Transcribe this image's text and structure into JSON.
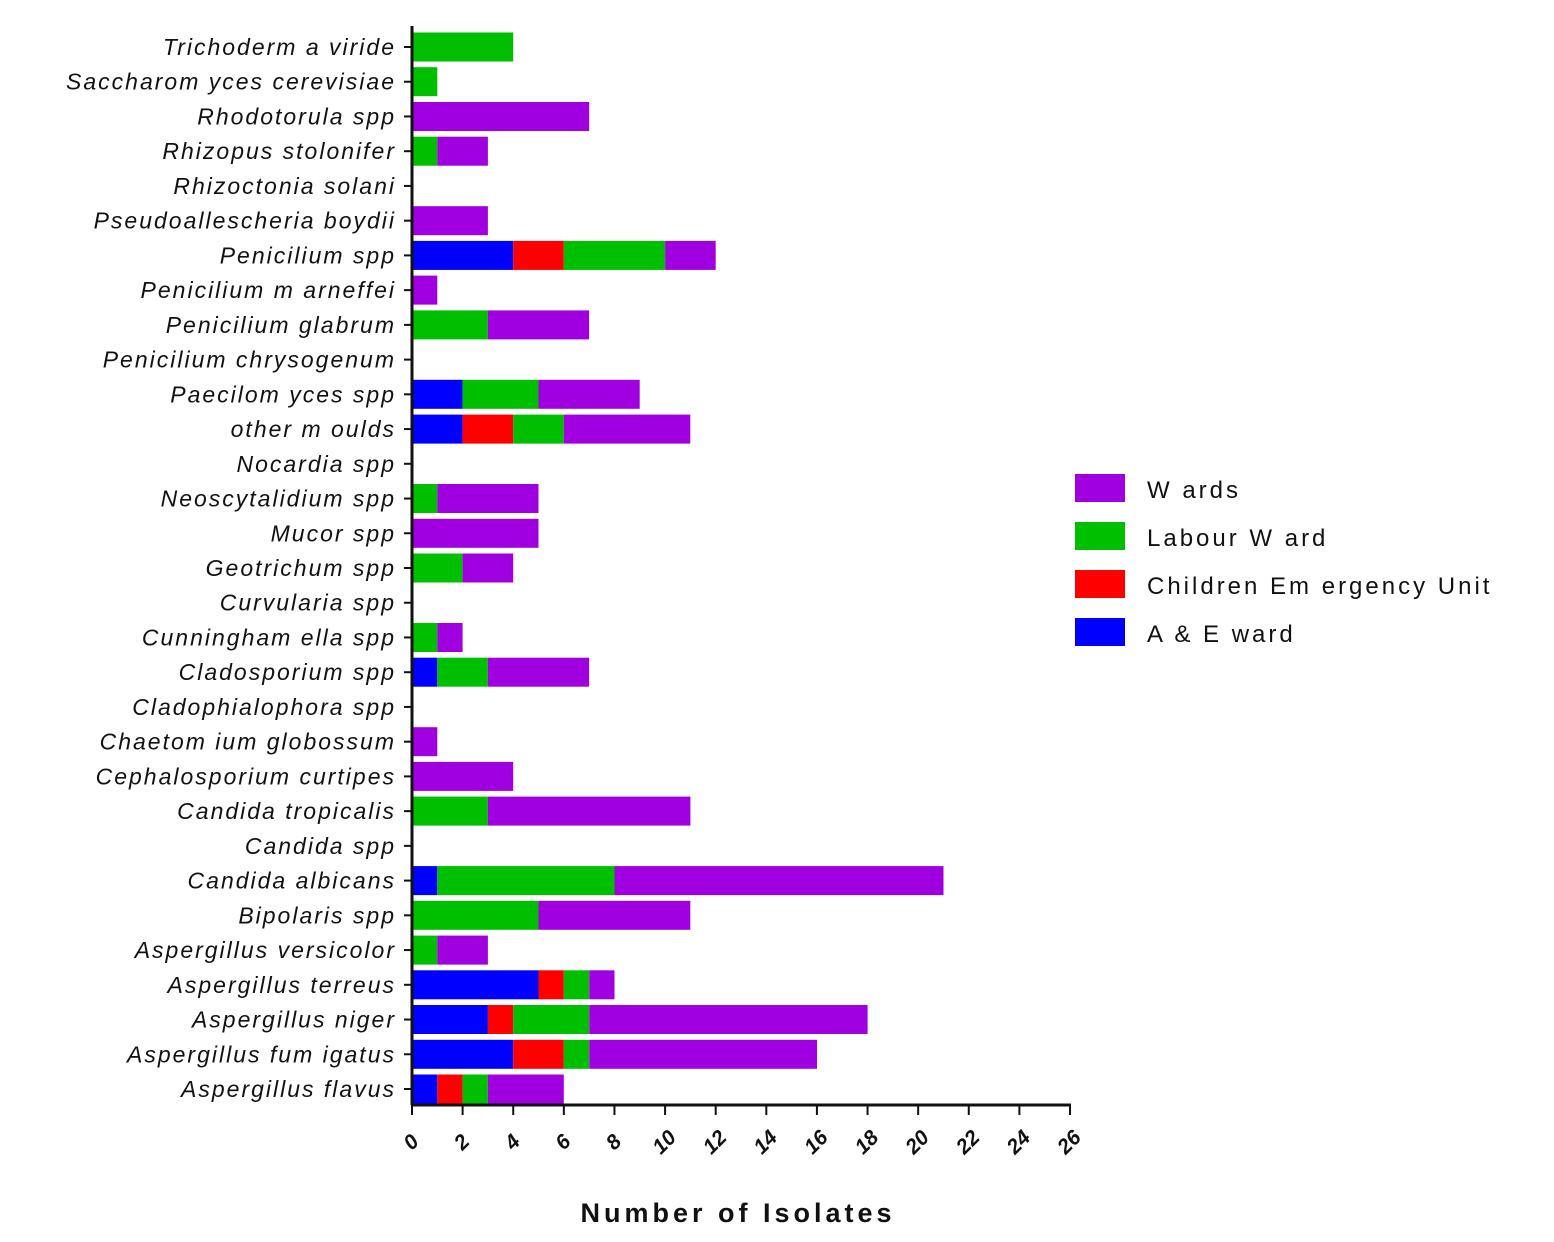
{
  "chart_data": {
    "type": "bar",
    "orientation": "horizontal",
    "stacked": true,
    "title": "",
    "xlabel": "Number of Isolates",
    "ylabel": "",
    "xlim": [
      0,
      26
    ],
    "x_ticks": [
      "0",
      "2",
      "4",
      "6",
      "8",
      "10",
      "12",
      "14",
      "16",
      "18",
      "20",
      "22",
      "24",
      "26"
    ],
    "grid": false,
    "legend_position": "right",
    "categories": [
      "Trichoderma viride",
      "Saccharomyces cerevisiae",
      "Rhodotorula spp",
      "Rhizopus stolonifer",
      "Rhizoctonia solani",
      "Pseudoallescheria boydii",
      "Penicilium spp",
      "Penicilium marneffei",
      "Penicilium glabrum",
      "Penicilium chrysogenum",
      "Paecilomyces spp",
      "other moulds",
      "Nocardia spp",
      "Neoscytalidium spp",
      "Mucor spp",
      "Geotrichum spp",
      "Curvularia spp",
      "Cunninghamella spp",
      "Cladosporium spp",
      "Cladophialophora spp",
      "Chaetomium globossum",
      "Cephalosporium curtipes",
      "Candida tropicalis",
      "Candida spp",
      "Candida albicans",
      "Bipolaris spp",
      "Aspergillus versicolor",
      "Aspergillus terreus",
      "Aspergillus niger",
      "Aspergillus fumigatus",
      "Aspergillus flavus"
    ],
    "category_labels": [
      "Trichoderm a  viride",
      "Saccharom yces  cerevisiae",
      "Rhodotorula  spp",
      "Rhizopus  stolonifer",
      "Rhizoctonia  solani",
      "Pseudoallescheria  boydii",
      "Penicilium  spp",
      "Penicilium  m arneffei",
      "Penicilium  glabrum",
      "Penicilium  chrysogenum",
      "Paecilom yces  spp",
      "other m oulds",
      "Nocardia  spp",
      "Neoscytalidium  spp",
      "Mucor spp",
      "Geotrichum  spp",
      "Curvularia  spp",
      "Cunningham ella  spp",
      "Cladosporium  spp",
      "Cladophialophora  spp",
      "Chaetom ium  globossum",
      "Cephalosporium  curtipes",
      "Candida  tropicalis",
      "Candida  spp",
      "Candida  albicans",
      "Bipolaris  spp",
      "Aspergillus  versicolor",
      "Aspergillus  terreus",
      "Aspergillus  niger",
      "Aspergillus  fum igatus",
      "Aspergillus  flavus"
    ],
    "series": [
      {
        "name": "A & E ward",
        "legend_label": "A  &  E  ward",
        "color": "#0000ff",
        "values": [
          0,
          0,
          0,
          0,
          0,
          0,
          4,
          0,
          0,
          0,
          2,
          2,
          0,
          0,
          0,
          0,
          0,
          0,
          1,
          0,
          0,
          0,
          0,
          0,
          1,
          0,
          0,
          5,
          3,
          4,
          1
        ]
      },
      {
        "name": "Children Emergency Unit",
        "legend_label": "Children  Em ergency  Unit",
        "color": "#ff0000",
        "values": [
          0,
          0,
          0,
          0,
          0,
          0,
          2,
          0,
          0,
          0,
          0,
          2,
          0,
          0,
          0,
          0,
          0,
          0,
          0,
          0,
          0,
          0,
          0,
          0,
          0,
          0,
          0,
          1,
          1,
          2,
          1
        ]
      },
      {
        "name": "Labour Ward",
        "legend_label": "Labour W ard",
        "color": "#00bf00",
        "values": [
          4,
          1,
          0,
          1,
          0,
          0,
          4,
          0,
          3,
          0,
          3,
          2,
          0,
          1,
          0,
          2,
          0,
          1,
          2,
          0,
          0,
          0,
          3,
          0,
          7,
          5,
          1,
          1,
          3,
          1,
          1
        ]
      },
      {
        "name": "Wards",
        "legend_label": "W ards",
        "color": "#a000e0",
        "values": [
          0,
          0,
          7,
          2,
          0,
          3,
          2,
          1,
          4,
          0,
          4,
          5,
          0,
          4,
          5,
          2,
          0,
          1,
          4,
          0,
          1,
          4,
          8,
          0,
          13,
          6,
          2,
          1,
          11,
          9,
          3
        ]
      }
    ]
  }
}
